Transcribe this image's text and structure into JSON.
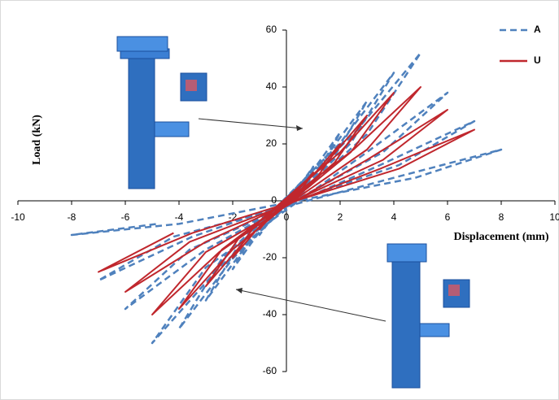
{
  "chart_data": {
    "type": "line",
    "x_label": "Displacement (mm)",
    "y_label": "Load (kN)",
    "xlim": [
      -10,
      10
    ],
    "xticks": [
      -10,
      -8,
      -6,
      -4,
      -2,
      0,
      2,
      4,
      6,
      8,
      10
    ],
    "ylim": [
      -60,
      60
    ],
    "yticks": [
      -60,
      -40,
      -20,
      0,
      20,
      40,
      60
    ],
    "series": [
      {
        "name": "A",
        "color": "#4f81bd",
        "dashed": true,
        "x": [
          0,
          0.5,
          1,
          0.6,
          -0.5,
          -1,
          -0.6,
          1,
          2,
          1.2,
          -1,
          -2,
          -1.2,
          1.5,
          3,
          1.8,
          -1.5,
          -3,
          -1.8,
          2,
          4,
          2.4,
          -2,
          -4,
          -2.4,
          2.5,
          5,
          3,
          -2.5,
          -5,
          -3,
          3,
          6,
          3.6,
          -3,
          -6,
          -3.6,
          3.5,
          7,
          4.2,
          -3.5,
          -7,
          -4.2,
          4,
          8,
          4.8,
          -4,
          -8,
          -4.8
        ],
        "values": [
          0,
          5.4,
          12,
          5.4,
          -5.4,
          -12,
          -5.4,
          10.8,
          24,
          10.8,
          -10.8,
          -24,
          -10.8,
          15.8,
          35,
          15.8,
          -15.8,
          -35,
          -15.8,
          20.3,
          45,
          20.3,
          -20.3,
          -45,
          -20.3,
          23.4,
          52,
          23.4,
          -23.4,
          -50,
          -23.4,
          17.1,
          38,
          17.1,
          -17.1,
          -38,
          -17.1,
          12.6,
          28,
          12.6,
          -12.6,
          -28,
          -12.6,
          8.1,
          18,
          8.1,
          -8.1,
          -12,
          -8.1
        ]
      },
      {
        "name": "U",
        "color": "#c0272d",
        "dashed": false,
        "x": [
          0,
          0.5,
          1,
          0.6,
          -0.5,
          -1,
          -0.6,
          1,
          2,
          1.2,
          -1,
          -2,
          -1.2,
          1.5,
          3,
          1.8,
          -1.5,
          -3,
          -1.8,
          2,
          4,
          2.4,
          -2,
          -4,
          -2.4,
          2.5,
          5,
          3,
          -2.5,
          -5,
          -3,
          3,
          6,
          3.6,
          -3,
          -6,
          -3.6,
          3.5,
          7,
          4.2,
          -3.5,
          -7,
          -4.2
        ],
        "values": [
          0,
          4.5,
          10,
          4.5,
          -4.5,
          -10,
          -4.5,
          9,
          20,
          9,
          -9,
          -20,
          -9,
          13.5,
          30,
          13.5,
          -13.5,
          -30,
          -13.5,
          17.1,
          38,
          17.1,
          -17.1,
          -38,
          -17.1,
          18,
          40,
          18,
          -18,
          -40,
          -18,
          14.4,
          32,
          14.4,
          -14.4,
          -32,
          -14.4,
          11.3,
          25,
          11.3,
          -11.3,
          -25,
          -11.3
        ]
      }
    ]
  }
}
